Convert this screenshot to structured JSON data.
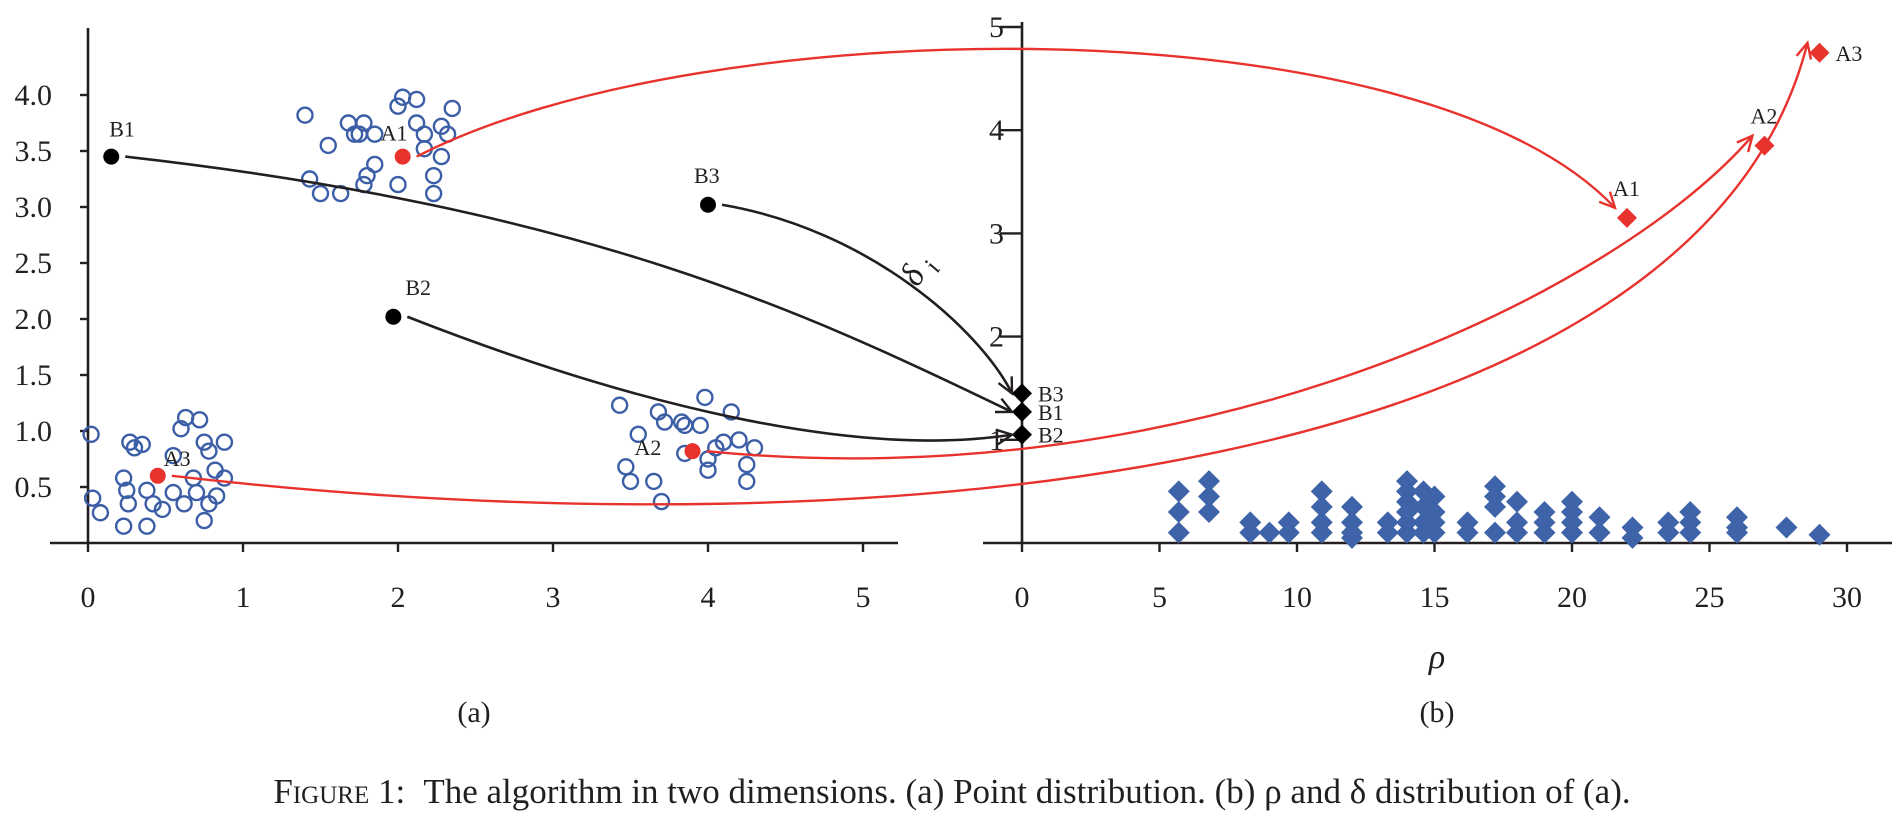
{
  "chart_data": [
    {
      "type": "scatter",
      "panel_label": "(a)",
      "x_ticks": [
        "0",
        "1",
        "2",
        "3",
        "4",
        "5"
      ],
      "y_ticks": [
        "0.5",
        "1.0",
        "1.5",
        "2.0",
        "2.5",
        "3.0",
        "3.5",
        "4.0"
      ],
      "xlim": [
        0,
        5.3
      ],
      "ylim": [
        0,
        4.4
      ],
      "series": [
        {
          "marker": "open-circle",
          "color": "#3b5ea6",
          "points": [
            [
              1.4,
              3.82
            ],
            [
              1.55,
              3.55
            ],
            [
              1.43,
              3.25
            ],
            [
              1.5,
              3.12
            ],
            [
              1.63,
              3.12
            ],
            [
              1.68,
              3.75
            ],
            [
              1.72,
              3.65
            ],
            [
              1.75,
              3.65
            ],
            [
              1.78,
              3.75
            ],
            [
              1.85,
              3.65
            ],
            [
              1.85,
              3.38
            ],
            [
              1.8,
              3.28
            ],
            [
              1.78,
              3.2
            ],
            [
              2.0,
              3.9
            ],
            [
              2.03,
              3.98
            ],
            [
              2.12,
              3.96
            ],
            [
              2.0,
              3.2
            ],
            [
              2.12,
              3.75
            ],
            [
              2.17,
              3.65
            ],
            [
              2.17,
              3.52
            ],
            [
              2.28,
              3.72
            ],
            [
              2.28,
              3.45
            ],
            [
              2.32,
              3.65
            ],
            [
              2.35,
              3.88
            ],
            [
              2.23,
              3.28
            ],
            [
              2.23,
              3.12
            ],
            [
              0.02,
              0.97
            ],
            [
              0.03,
              0.4
            ],
            [
              0.08,
              0.27
            ],
            [
              0.23,
              0.58
            ],
            [
              0.27,
              0.9
            ],
            [
              0.25,
              0.47
            ],
            [
              0.3,
              0.85
            ],
            [
              0.35,
              0.88
            ],
            [
              0.38,
              0.47
            ],
            [
              0.42,
              0.35
            ],
            [
              0.23,
              0.15
            ],
            [
              0.38,
              0.15
            ],
            [
              0.26,
              0.35
            ],
            [
              0.55,
              0.78
            ],
            [
              0.48,
              0.3
            ],
            [
              0.6,
              1.02
            ],
            [
              0.63,
              1.12
            ],
            [
              0.72,
              1.1
            ],
            [
              0.75,
              0.9
            ],
            [
              0.78,
              0.82
            ],
            [
              0.82,
              0.65
            ],
            [
              0.83,
              0.42
            ],
            [
              0.88,
              0.58
            ],
            [
              0.88,
              0.9
            ],
            [
              0.55,
              0.45
            ],
            [
              0.62,
              0.35
            ],
            [
              0.68,
              0.58
            ],
            [
              0.7,
              0.45
            ],
            [
              0.75,
              0.2
            ],
            [
              0.78,
              0.35
            ],
            [
              3.43,
              1.23
            ],
            [
              3.47,
              0.68
            ],
            [
              3.5,
              0.55
            ],
            [
              3.55,
              0.97
            ],
            [
              3.68,
              1.17
            ],
            [
              3.72,
              1.08
            ],
            [
              3.65,
              0.55
            ],
            [
              3.7,
              0.37
            ],
            [
              3.85,
              1.05
            ],
            [
              3.85,
              0.8
            ],
            [
              3.95,
              1.05
            ],
            [
              3.98,
              1.3
            ],
            [
              4.0,
              0.65
            ],
            [
              4.0,
              0.75
            ],
            [
              4.05,
              0.85
            ],
            [
              4.1,
              0.9
            ],
            [
              4.15,
              1.17
            ],
            [
              4.2,
              0.92
            ],
            [
              4.25,
              0.7
            ],
            [
              4.25,
              0.55
            ],
            [
              4.3,
              0.85
            ],
            [
              3.83,
              1.08
            ]
          ]
        },
        {
          "marker": "filled-circle",
          "color": "#000000",
          "labels": [
            "B1",
            "B2",
            "B3"
          ],
          "points": [
            [
              0.15,
              3.45
            ],
            [
              1.97,
              2.02
            ],
            [
              4.0,
              3.02
            ]
          ]
        },
        {
          "marker": "filled-circle",
          "color": "#e8322e",
          "labels": [
            "A1",
            "A2",
            "A3"
          ],
          "points": [
            [
              2.03,
              3.45
            ],
            [
              3.9,
              0.82
            ],
            [
              0.45,
              0.6
            ]
          ]
        }
      ]
    },
    {
      "type": "scatter",
      "panel_label": "(b)",
      "xlabel": "ρ",
      "ylabel": "δ",
      "ylabel_suffix": "i",
      "x_ticks": [
        "0",
        "5",
        "10",
        "15",
        "20",
        "25",
        "30"
      ],
      "y_ticks": [
        "1",
        "2",
        "3",
        "4",
        "5"
      ],
      "xlim": [
        0,
        31
      ],
      "ylim": [
        0,
        5
      ],
      "series": [
        {
          "marker": "diamond",
          "color": "#3e63a8",
          "points": [
            [
              5.7,
              0.5
            ],
            [
              5.7,
              0.3
            ],
            [
              5.7,
              0.1
            ],
            [
              6.8,
              0.6
            ],
            [
              6.8,
              0.45
            ],
            [
              6.8,
              0.3
            ],
            [
              8.3,
              0.2
            ],
            [
              8.3,
              0.1
            ],
            [
              9.0,
              0.1
            ],
            [
              9.7,
              0.2
            ],
            [
              9.7,
              0.1
            ],
            [
              10.9,
              0.5
            ],
            [
              10.9,
              0.35
            ],
            [
              10.9,
              0.2
            ],
            [
              10.9,
              0.1
            ],
            [
              12.0,
              0.35
            ],
            [
              12.0,
              0.2
            ],
            [
              12.0,
              0.1
            ],
            [
              12.0,
              0.05
            ],
            [
              13.3,
              0.2
            ],
            [
              13.3,
              0.1
            ],
            [
              14.0,
              0.6
            ],
            [
              14.0,
              0.5
            ],
            [
              14.0,
              0.4
            ],
            [
              14.0,
              0.3
            ],
            [
              14.0,
              0.2
            ],
            [
              14.0,
              0.1
            ],
            [
              14.6,
              0.5
            ],
            [
              14.6,
              0.35
            ],
            [
              14.6,
              0.2
            ],
            [
              14.6,
              0.1
            ],
            [
              15.0,
              0.45
            ],
            [
              15.0,
              0.3
            ],
            [
              15.0,
              0.2
            ],
            [
              15.0,
              0.1
            ],
            [
              16.2,
              0.2
            ],
            [
              16.2,
              0.1
            ],
            [
              17.2,
              0.55
            ],
            [
              17.2,
              0.45
            ],
            [
              17.2,
              0.35
            ],
            [
              17.2,
              0.1
            ],
            [
              18.0,
              0.4
            ],
            [
              18.0,
              0.2
            ],
            [
              18.0,
              0.1
            ],
            [
              19.0,
              0.3
            ],
            [
              19.0,
              0.2
            ],
            [
              19.0,
              0.1
            ],
            [
              20.0,
              0.4
            ],
            [
              20.0,
              0.3
            ],
            [
              20.0,
              0.2
            ],
            [
              20.0,
              0.1
            ],
            [
              21.0,
              0.25
            ],
            [
              21.0,
              0.1
            ],
            [
              22.2,
              0.15
            ],
            [
              22.2,
              0.05
            ],
            [
              23.5,
              0.2
            ],
            [
              23.5,
              0.1
            ],
            [
              24.3,
              0.3
            ],
            [
              24.3,
              0.2
            ],
            [
              24.3,
              0.1
            ],
            [
              26.0,
              0.25
            ],
            [
              26.0,
              0.15
            ],
            [
              26.0,
              0.1
            ],
            [
              27.8,
              0.15
            ],
            [
              29.0,
              0.08
            ]
          ]
        },
        {
          "marker": "diamond",
          "color": "#000000",
          "labels": [
            "B3",
            "B1",
            "B2"
          ],
          "points": [
            [
              0,
              1.45
            ],
            [
              0,
              1.27
            ],
            [
              0,
              1.05
            ]
          ]
        },
        {
          "marker": "diamond",
          "color": "#e8322e",
          "labels": [
            "A1",
            "A2",
            "A3"
          ],
          "points": [
            [
              22,
              3.15
            ],
            [
              27,
              3.85
            ],
            [
              29,
              4.75
            ]
          ]
        }
      ]
    }
  ],
  "arrows": [
    {
      "from": "a.B1",
      "to": "b.B1",
      "color": "#231f20"
    },
    {
      "from": "a.B2",
      "to": "b.B2",
      "color": "#231f20"
    },
    {
      "from": "a.B3",
      "to": "b.B3",
      "color": "#231f20"
    },
    {
      "from": "a.A1",
      "to": "b.A1",
      "color": "#e8322e"
    },
    {
      "from": "a.A2",
      "to": "b.A2",
      "color": "#e8322e"
    },
    {
      "from": "a.A3",
      "to": "b.A3",
      "color": "#e8322e"
    }
  ],
  "caption": {
    "lead": "Figure 1:",
    "text": "The algorithm in two dimensions. (a) Point distribution. (b) ρ and δ distribution of (a)."
  }
}
